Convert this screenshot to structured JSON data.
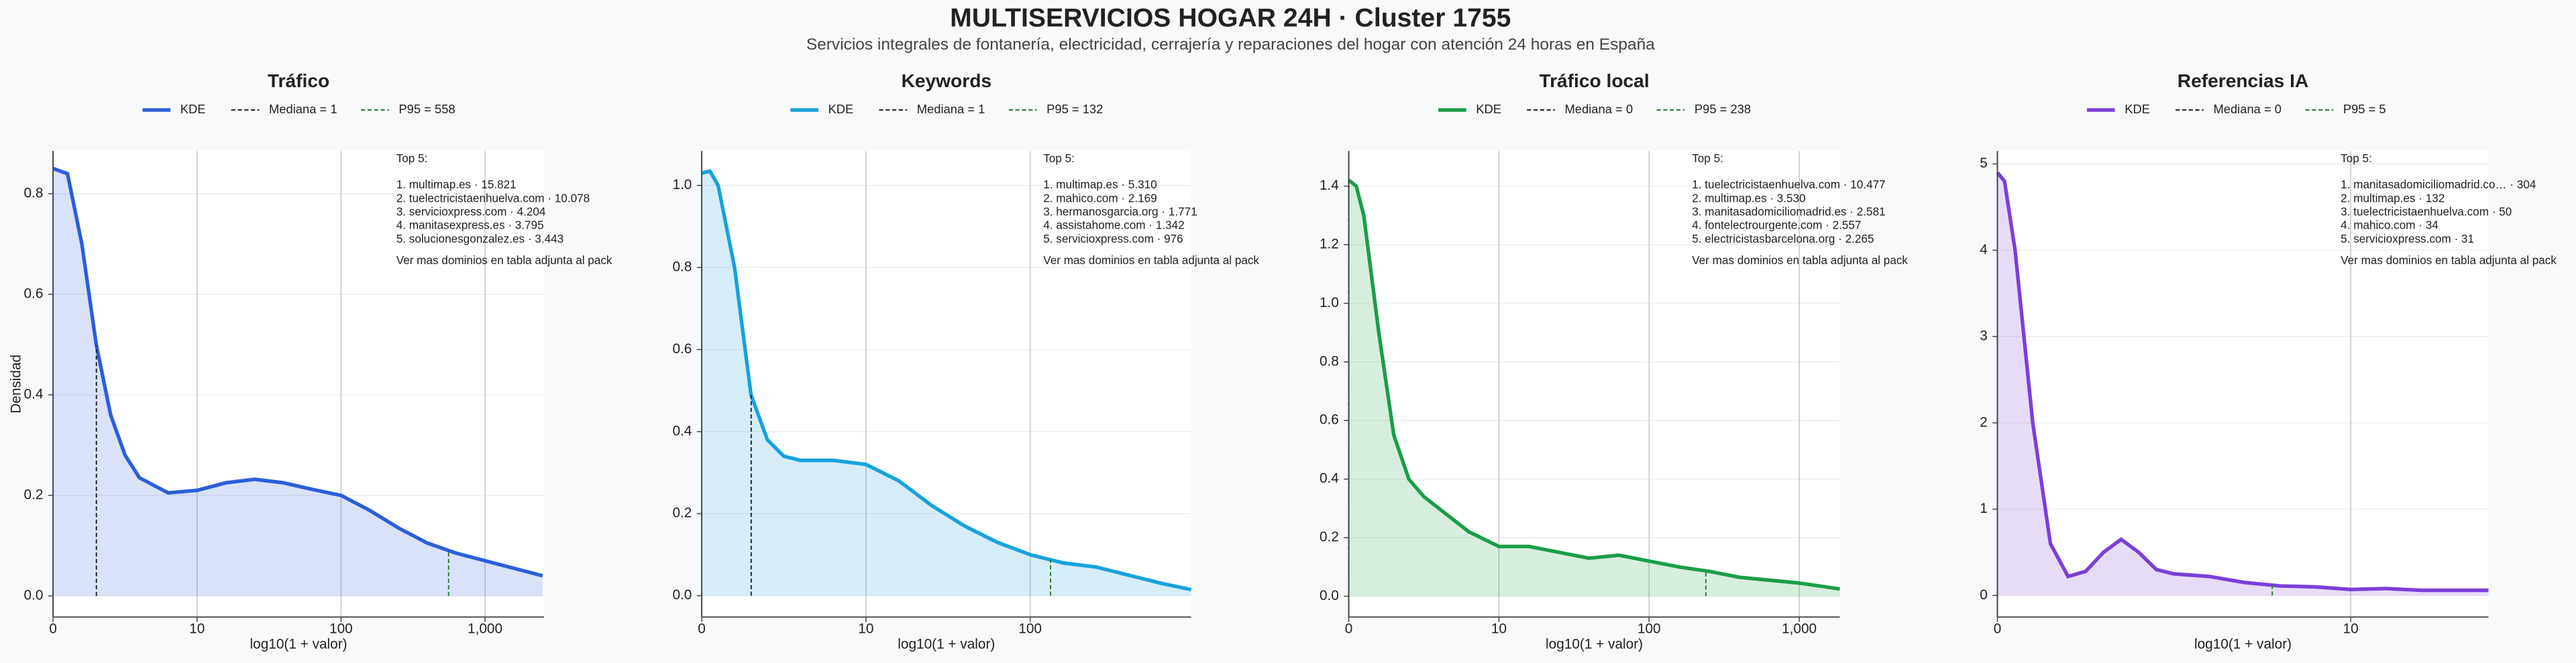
{
  "header": {
    "title": "MULTISERVICIOS HOGAR 24H · Cluster 1755",
    "subtitle": "Servicios integrales de fontanería, electricidad, cerrajería y reparaciones del hogar con atención 24 horas en España"
  },
  "chart_data": [
    {
      "type": "kde",
      "title": "Tráfico",
      "xlabel": "log10(1 + valor)",
      "ylabel": "Densidad",
      "x": [
        0,
        0.1,
        0.2,
        0.3,
        0.4,
        0.5,
        0.6,
        0.8,
        1.0,
        1.2,
        1.4,
        1.6,
        1.8,
        2.0,
        2.2,
        2.4,
        2.6,
        2.8,
        3.0,
        3.2,
        3.4
      ],
      "series": [
        {
          "name": "KDE",
          "color": "#2b5fd9",
          "values": [
            0.85,
            0.84,
            0.7,
            0.5,
            0.36,
            0.28,
            0.235,
            0.205,
            0.21,
            0.225,
            0.232,
            0.225,
            0.212,
            0.2,
            0.17,
            0.135,
            0.105,
            0.085,
            0.07,
            0.055,
            0.04
          ]
        }
      ],
      "reference_lines": [
        {
          "name": "Mediana = 1",
          "x": 0.301,
          "color": "#222222"
        },
        {
          "name": "P95 = 558",
          "x": 2.747,
          "color": "#2e7d32"
        }
      ],
      "xlim": [
        0,
        3.41
      ],
      "ylim": [
        -0.042,
        0.885
      ],
      "xticks": [
        0,
        {
          "value": 1,
          "label": "10"
        },
        {
          "value": 2,
          "label": "100"
        },
        {
          "value": 3,
          "label": "1,000"
        }
      ],
      "yticks": [
        {
          "value": 0,
          "label": "0.0"
        },
        {
          "value": 0.2,
          "label": "0.2"
        },
        {
          "value": 0.4,
          "label": "0.4"
        },
        {
          "value": 0.6,
          "label": "0.6"
        },
        {
          "value": 0.8,
          "label": "0.8"
        }
      ],
      "grid": true,
      "annotation": {
        "heading": "Top 5:",
        "lines": [
          "1. multimap.es · 15.821",
          "2. tuelectricistaenhuelva.com · 10.078",
          "3. servicioxpress.com · 4.204",
          "4. manitasexpress.es · 3.795",
          "5. solucionesgonzalez.es · 3.443"
        ],
        "footer": "Ver mas dominios en tabla adjunta al pack"
      }
    },
    {
      "type": "kde",
      "title": "Keywords",
      "xlabel": "log10(1 + valor)",
      "x": [
        0,
        0.05,
        0.1,
        0.2,
        0.3,
        0.4,
        0.5,
        0.6,
        0.8,
        1.0,
        1.2,
        1.4,
        1.6,
        1.8,
        2.0,
        2.2,
        2.4,
        2.6,
        2.8,
        2.98
      ],
      "series": [
        {
          "name": "KDE",
          "color": "#17a2dc",
          "values": [
            1.03,
            1.035,
            1.0,
            0.8,
            0.49,
            0.38,
            0.34,
            0.33,
            0.33,
            0.32,
            0.28,
            0.22,
            0.17,
            0.13,
            0.1,
            0.08,
            0.07,
            0.05,
            0.03,
            0.015
          ]
        }
      ],
      "reference_lines": [
        {
          "name": "Mediana = 1",
          "x": 0.301,
          "color": "#222222"
        },
        {
          "name": "P95 = 132",
          "x": 2.124,
          "color": "#2e7d32"
        }
      ],
      "xlim": [
        0,
        2.98
      ],
      "ylim": [
        -0.052,
        1.084
      ],
      "xticks": [
        0,
        {
          "value": 1,
          "label": "10"
        },
        {
          "value": 2,
          "label": "100"
        }
      ],
      "yticks": [
        {
          "value": 0,
          "label": "0.0"
        },
        {
          "value": 0.2,
          "label": "0.2"
        },
        {
          "value": 0.4,
          "label": "0.4"
        },
        {
          "value": 0.6,
          "label": "0.6"
        },
        {
          "value": 0.8,
          "label": "0.8"
        },
        {
          "value": 1,
          "label": "1.0"
        }
      ],
      "grid": true,
      "annotation": {
        "heading": "Top 5:",
        "lines": [
          "1. multimap.es · 5.310",
          "2. mahico.com · 2.169",
          "3. hermanosgarcia.org · 1.771",
          "4. assistahome.com · 1.342",
          "5. servicioxpress.com · 976"
        ],
        "footer": "Ver mas dominios en tabla adjunta al pack"
      }
    },
    {
      "type": "kde",
      "title": "Tráfico local",
      "xlabel": "log10(1 + valor)",
      "x": [
        0,
        0.05,
        0.1,
        0.2,
        0.3,
        0.4,
        0.5,
        0.6,
        0.8,
        1.0,
        1.2,
        1.4,
        1.6,
        1.8,
        2.0,
        2.2,
        2.4,
        2.6,
        2.8,
        3.0,
        3.27
      ],
      "series": [
        {
          "name": "KDE",
          "color": "#1a9e4a",
          "values": [
            1.42,
            1.4,
            1.3,
            0.9,
            0.55,
            0.4,
            0.34,
            0.3,
            0.22,
            0.17,
            0.17,
            0.15,
            0.13,
            0.14,
            0.12,
            0.1,
            0.085,
            0.065,
            0.055,
            0.045,
            0.025
          ]
        }
      ],
      "reference_lines": [
        {
          "name": "Mediana = 0",
          "x": 0,
          "color": "#222222"
        },
        {
          "name": "P95 = 238",
          "x": 2.378,
          "color": "#2e7d32"
        }
      ],
      "xlim": [
        0,
        3.27
      ],
      "ylim": [
        -0.071,
        1.52
      ],
      "xticks": [
        0,
        {
          "value": 1,
          "label": "10"
        },
        {
          "value": 2,
          "label": "100"
        },
        {
          "value": 3,
          "label": "1,000"
        }
      ],
      "yticks": [
        {
          "value": 0,
          "label": "0.0"
        },
        {
          "value": 0.2,
          "label": "0.2"
        },
        {
          "value": 0.4,
          "label": "0.4"
        },
        {
          "value": 0.6,
          "label": "0.6"
        },
        {
          "value": 0.8,
          "label": "0.8"
        },
        {
          "value": 1,
          "label": "1.0"
        },
        {
          "value": 1.2,
          "label": "1.2"
        },
        {
          "value": 1.4,
          "label": "1.4"
        }
      ],
      "grid": true,
      "annotation": {
        "heading": "Top 5:",
        "lines": [
          "1. tuelectricistaenhuelva.com · 10.477",
          "2. multimap.es · 3.530",
          "3. manitasadomiciliomadrid.es · 2.581",
          "4. fontelectrourgente.com · 2.557",
          "5. electricistasbarcelona.org · 2.265"
        ],
        "footer": "Ver mas dominios en tabla adjunta al pack"
      }
    },
    {
      "type": "kde",
      "title": "Referencias IA",
      "xlabel": "log10(1 + valor)",
      "x": [
        0,
        0.02,
        0.05,
        0.1,
        0.15,
        0.2,
        0.25,
        0.3,
        0.35,
        0.4,
        0.45,
        0.5,
        0.6,
        0.7,
        0.8,
        0.9,
        1.0,
        1.1,
        1.2,
        1.3,
        1.39
      ],
      "series": [
        {
          "name": "KDE",
          "color": "#7c3fd8",
          "values": [
            4.9,
            4.8,
            4.0,
            2.0,
            0.6,
            0.22,
            0.28,
            0.5,
            0.65,
            0.5,
            0.3,
            0.25,
            0.22,
            0.15,
            0.11,
            0.1,
            0.07,
            0.08,
            0.06,
            0.06,
            0.06
          ]
        }
      ],
      "reference_lines": [
        {
          "name": "Mediana = 0",
          "x": 0,
          "color": "#222222"
        },
        {
          "name": "P95 = 5",
          "x": 0.778,
          "color": "#2e7d32"
        }
      ],
      "xlim": [
        0,
        1.39
      ],
      "ylim": [
        -0.25,
        5.15
      ],
      "xticks": [
        0,
        {
          "value": 1,
          "label": "10"
        }
      ],
      "yticks": [
        0,
        1,
        2,
        3,
        4,
        5
      ],
      "grid": true,
      "annotation": {
        "heading": "Top 5:",
        "lines": [
          "1. manitasadomiciliomadrid.co… · 304",
          "2. multimap.es · 132",
          "3. tuelectricistaenhuelva.com · 50",
          "4. mahico.com · 34",
          "5. servicioxpress.com · 31"
        ],
        "footer": "Ver mas dominios en tabla adjunta al pack"
      }
    }
  ]
}
